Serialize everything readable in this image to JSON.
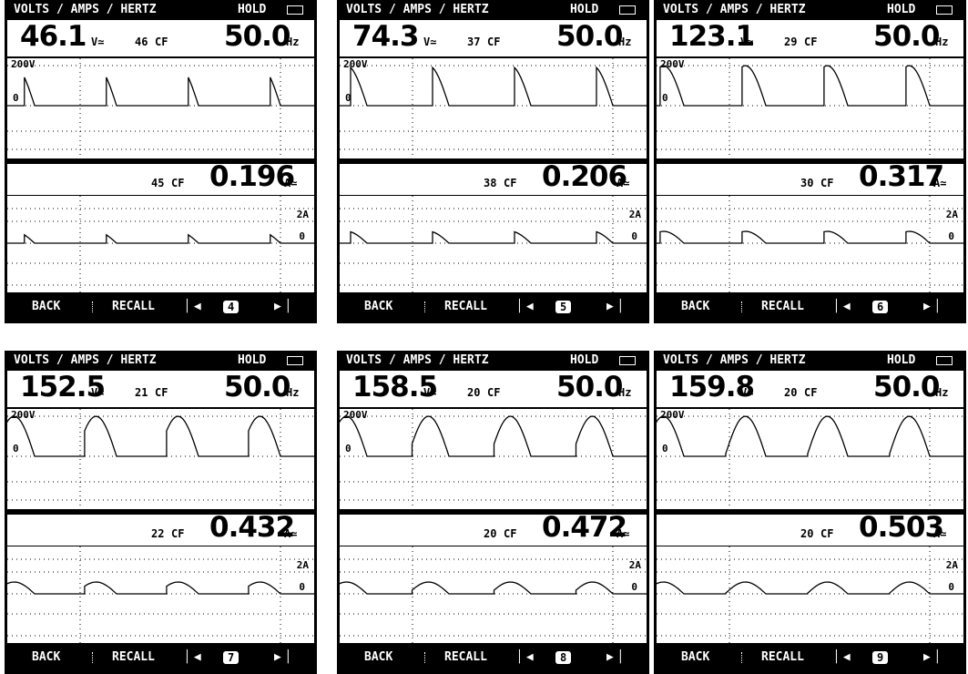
{
  "panels": [
    {
      "header": {
        "title": "VOLTS / AMPS / HERTZ",
        "status": "HOLD"
      },
      "voltage": {
        "value": "46.1",
        "unit": "V≃",
        "cf": "46",
        "cf_label": "CF"
      },
      "frequency": {
        "value": "50.0",
        "unit": "Hz"
      },
      "scope1": {
        "scale": "200V",
        "zero": "0"
      },
      "current": {
        "cf": "45",
        "cf_label": "CF",
        "value": "0.196",
        "unit": "A≃"
      },
      "scope2": {
        "scale": "2A",
        "zero": "0"
      },
      "menu": {
        "back": "BACK",
        "recall": "RECALL",
        "page": "4"
      }
    },
    {
      "header": {
        "title": "VOLTS / AMPS / HERTZ",
        "status": "HOLD"
      },
      "voltage": {
        "value": "74.3",
        "unit": "V≃",
        "cf": "37",
        "cf_label": "CF"
      },
      "frequency": {
        "value": "50.0",
        "unit": "Hz"
      },
      "scope1": {
        "scale": "200V",
        "zero": "0"
      },
      "current": {
        "cf": "38",
        "cf_label": "CF",
        "value": "0.206",
        "unit": "A≃"
      },
      "scope2": {
        "scale": "2A",
        "zero": "0"
      },
      "menu": {
        "back": "BACK",
        "recall": "RECALL",
        "page": "5"
      }
    },
    {
      "header": {
        "title": "VOLTS / AMPS / HERTZ",
        "status": "HOLD"
      },
      "voltage": {
        "value": "123.1",
        "unit": "V≃",
        "cf": "29",
        "cf_label": "CF"
      },
      "frequency": {
        "value": "50.0",
        "unit": "Hz"
      },
      "scope1": {
        "scale": "200V",
        "zero": "0"
      },
      "current": {
        "cf": "30",
        "cf_label": "CF",
        "value": "0.317",
        "unit": "A≃"
      },
      "scope2": {
        "scale": "2A",
        "zero": "0"
      },
      "menu": {
        "back": "BACK",
        "recall": "RECALL",
        "page": "6"
      }
    },
    {
      "header": {
        "title": "VOLTS / AMPS / HERTZ",
        "status": "HOLD"
      },
      "voltage": {
        "value": "152.5",
        "unit": "V≃",
        "cf": "21",
        "cf_label": "CF"
      },
      "frequency": {
        "value": "50.0",
        "unit": "Hz"
      },
      "scope1": {
        "scale": "200V",
        "zero": "0"
      },
      "current": {
        "cf": "22",
        "cf_label": "CF",
        "value": "0.432",
        "unit": "A≃"
      },
      "scope2": {
        "scale": "2A",
        "zero": "0"
      },
      "menu": {
        "back": "BACK",
        "recall": "RECALL",
        "page": "7"
      }
    },
    {
      "header": {
        "title": "VOLTS / AMPS / HERTZ",
        "status": "HOLD"
      },
      "voltage": {
        "value": "158.5",
        "unit": "V≃",
        "cf": "20",
        "cf_label": "CF"
      },
      "frequency": {
        "value": "50.0",
        "unit": "Hz"
      },
      "scope1": {
        "scale": "200V",
        "zero": "0"
      },
      "current": {
        "cf": "20",
        "cf_label": "CF",
        "value": "0.472",
        "unit": "A≃"
      },
      "scope2": {
        "scale": "2A",
        "zero": "0"
      },
      "menu": {
        "back": "BACK",
        "recall": "RECALL",
        "page": "8"
      }
    },
    {
      "header": {
        "title": "VOLTS / AMPS / HERTZ",
        "status": "HOLD"
      },
      "voltage": {
        "value": "159.8",
        "unit": "V≃",
        "cf": "20",
        "cf_label": "CF"
      },
      "frequency": {
        "value": "50.0",
        "unit": "Hz"
      },
      "scope1": {
        "scale": "200V",
        "zero": "0"
      },
      "current": {
        "cf": "20",
        "cf_label": "CF",
        "value": "0.503",
        "unit": "A≃"
      },
      "scope2": {
        "scale": "2A",
        "zero": "0"
      },
      "menu": {
        "back": "BACK",
        "recall": "RECALL",
        "page": "9"
      }
    }
  ]
}
